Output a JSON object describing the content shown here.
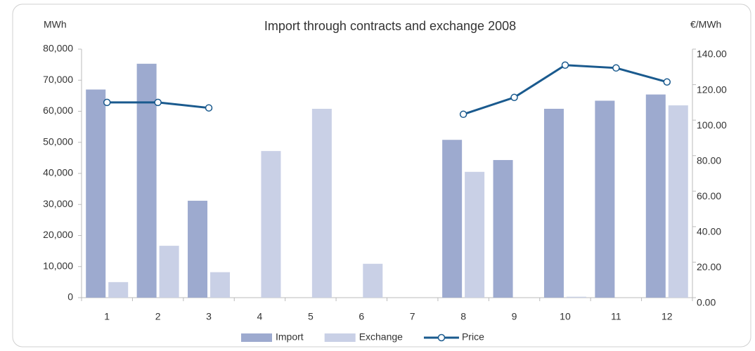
{
  "chart_data": {
    "type": "bar",
    "title": "Import through contracts and exchange 2008",
    "ylabel": "MWh",
    "y2label": "€/MWh",
    "categories": [
      "1",
      "2",
      "3",
      "4",
      "5",
      "6",
      "7",
      "8",
      "9",
      "10",
      "11",
      "12"
    ],
    "series": [
      {
        "name": "Import",
        "color": "#9daacf",
        "values": [
          67000,
          75300,
          31200,
          0,
          0,
          0,
          0,
          50800,
          44300,
          60800,
          63400,
          65400
        ]
      },
      {
        "name": "Exchange",
        "color": "#c9d0e6",
        "values": [
          5000,
          16700,
          8200,
          47200,
          60800,
          10900,
          0,
          40500,
          0,
          300,
          0,
          61900
        ]
      },
      {
        "name": "Price",
        "type": "line",
        "axis": "y2",
        "color": "#1a5a8e",
        "values": [
          110,
          110,
          106.9,
          null,
          null,
          null,
          null,
          103.3,
          112.8,
          131,
          129.4,
          121.5
        ]
      }
    ],
    "ylim": [
      0,
      80000
    ],
    "yticks": [
      {
        "value": 0,
        "label": "0"
      },
      {
        "value": 10000,
        "label": "10,000"
      },
      {
        "value": 20000,
        "label": "20,000"
      },
      {
        "value": 30000,
        "label": "30,000"
      },
      {
        "value": 40000,
        "label": "40,000"
      },
      {
        "value": 50000,
        "label": "50,000"
      },
      {
        "value": 60000,
        "label": "60,000"
      },
      {
        "value": 70000,
        "label": "70,000"
      },
      {
        "value": 80000,
        "label": "80,000"
      }
    ],
    "y2lim": [
      0,
      140
    ],
    "y2ticks": [
      {
        "value": 0,
        "label": "0.00"
      },
      {
        "value": 20,
        "label": "20.00"
      },
      {
        "value": 40,
        "label": "40.00"
      },
      {
        "value": 60,
        "label": "60.00"
      },
      {
        "value": 80,
        "label": "80.00"
      },
      {
        "value": 100,
        "label": "100.00"
      },
      {
        "value": 120,
        "label": "120.00"
      },
      {
        "value": 140,
        "label": "140.00"
      }
    ],
    "legend": "bottom"
  }
}
